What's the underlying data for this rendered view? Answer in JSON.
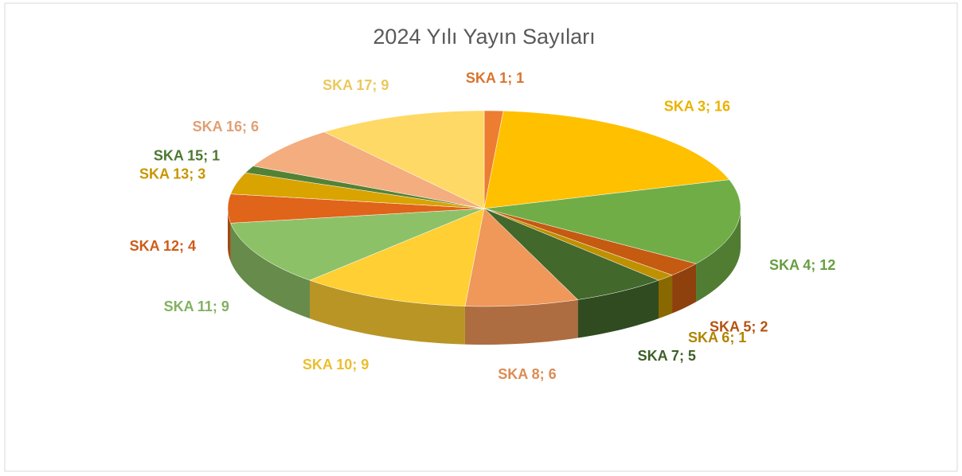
{
  "chart_data": {
    "type": "pie",
    "title": "2024 Yılı Yayın Sayıları",
    "values": [
      1,
      16,
      12,
      2,
      1,
      5,
      6,
      9,
      9,
      4,
      3,
      1,
      6,
      9
    ],
    "value_labels": [
      "SKA 1; 1",
      "SKA 3; 16",
      "SKA 4; 12",
      "SKA 5; 2",
      "SKA 6; 1",
      "SKA 7; 5",
      "SKA 8; 6",
      "SKA 10; 9",
      "SKA 11; 9",
      "SKA 12; 4",
      "SKA 13; 3",
      "SKA 15; 1",
      "SKA 16; 6",
      "SKA 17; 9"
    ],
    "colors": [
      "#ed7d31",
      "#ffc000",
      "#70ad47",
      "#c55a11",
      "#bf9000",
      "#43682b",
      "#f0975a",
      "#ffcf33",
      "#8dc167",
      "#e0641a",
      "#d9a300",
      "#548235",
      "#f4ad7e",
      "#ffd966"
    ]
  }
}
